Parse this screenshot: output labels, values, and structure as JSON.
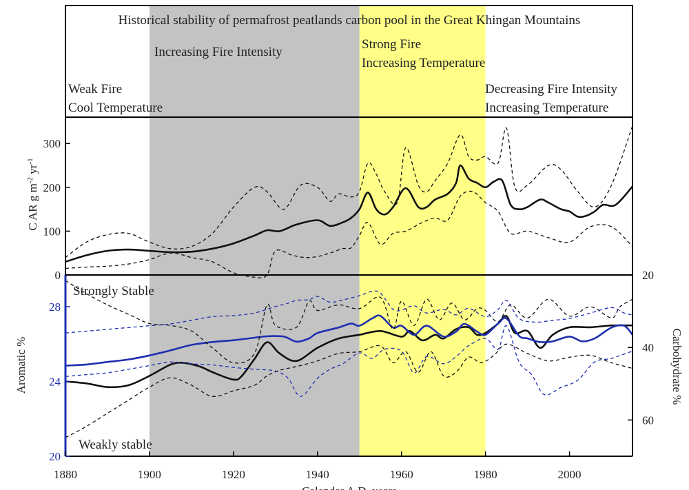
{
  "chart_data": [
    {
      "type": "annotation-panel",
      "title": "Historical stability of permafrost peatlands carbon pool in the Great Khingan Mountains",
      "periods": [
        {
          "from": 1880,
          "to": 1900,
          "color": "#ffffff",
          "lines": [
            "Weak Fire",
            "Cool Temperature"
          ]
        },
        {
          "from": 1900,
          "to": 1950,
          "color": "#c3c3c3",
          "lines": [
            "Increasing Fire Intensity"
          ]
        },
        {
          "from": 1950,
          "to": 1980,
          "color": "#ffff88",
          "lines": [
            "Strong Fire",
            "Increasing Temperature"
          ]
        },
        {
          "from": 1980,
          "to": 2015,
          "color": "#ffffff",
          "lines": [
            "Decreasing Fire Intensity",
            "Increasing Temperature"
          ]
        }
      ]
    },
    {
      "type": "line",
      "ylabel": "C AR g m-2 yr-1",
      "xlim": [
        1880,
        2015
      ],
      "ylim": [
        0,
        360
      ],
      "yticks": [
        0,
        100,
        200,
        300
      ],
      "series": [
        {
          "role": "mean",
          "color": "#111111",
          "dashed": false,
          "x": [
            1880,
            1885,
            1890,
            1895,
            1900,
            1905,
            1910,
            1915,
            1920,
            1925,
            1928,
            1931,
            1935,
            1940,
            1943,
            1946,
            1948,
            1950,
            1952,
            1954,
            1956,
            1958,
            1961,
            1964,
            1966,
            1968,
            1971,
            1973,
            1974,
            1976,
            1978,
            1980,
            1982,
            1984,
            1986,
            1988,
            1990,
            1993,
            1995,
            1998,
            2000,
            2002,
            2004,
            2006,
            2008,
            2011,
            2015
          ],
          "y": [
            30,
            45,
            55,
            58,
            55,
            52,
            53,
            60,
            72,
            90,
            102,
            100,
            115,
            125,
            112,
            120,
            130,
            150,
            188,
            150,
            138,
            155,
            198,
            155,
            155,
            172,
            185,
            210,
            250,
            220,
            210,
            200,
            213,
            215,
            160,
            150,
            155,
            172,
            165,
            150,
            145,
            133,
            135,
            145,
            160,
            160,
            202
          ]
        },
        {
          "role": "upper",
          "color": "#111111",
          "dashed": true,
          "x": [
            1880,
            1885,
            1890,
            1895,
            1900,
            1905,
            1910,
            1915,
            1920,
            1925,
            1928,
            1932,
            1936,
            1940,
            1943,
            1945,
            1948,
            1950,
            1952,
            1954,
            1956,
            1959,
            1961,
            1964,
            1966,
            1968,
            1971,
            1974,
            1976,
            1978,
            1980,
            1983,
            1985,
            1987,
            1990,
            1995,
            1998,
            2002,
            2006,
            2010,
            2015
          ],
          "y": [
            40,
            75,
            92,
            95,
            75,
            60,
            65,
            95,
            155,
            200,
            190,
            150,
            205,
            200,
            168,
            185,
            178,
            190,
            255,
            230,
            190,
            165,
            290,
            205,
            190,
            215,
            255,
            320,
            270,
            262,
            270,
            255,
            335,
            200,
            205,
            250,
            240,
            190,
            155,
            205,
            340
          ]
        },
        {
          "role": "lower",
          "color": "#111111",
          "dashed": true,
          "x": [
            1880,
            1885,
            1890,
            1895,
            1900,
            1905,
            1910,
            1915,
            1920,
            1925,
            1928,
            1930,
            1934,
            1937,
            1940,
            1943,
            1946,
            1948,
            1950,
            1952,
            1955,
            1958,
            1961,
            1965,
            1968,
            1971,
            1974,
            1977,
            1980,
            1983,
            1986,
            1990,
            1995,
            2000,
            2005,
            2010,
            2015
          ],
          "y": [
            15,
            18,
            20,
            25,
            35,
            50,
            40,
            30,
            5,
            -5,
            0,
            55,
            45,
            40,
            42,
            50,
            60,
            62,
            90,
            120,
            70,
            95,
            100,
            120,
            130,
            125,
            180,
            190,
            165,
            145,
            95,
            100,
            85,
            75,
            110,
            110,
            65
          ]
        }
      ]
    },
    {
      "type": "line",
      "ylabel": "Aromatic %",
      "ylabel_right": "Carbohydrate %",
      "xlabel": "Calendar A.D. years",
      "xlim": [
        1880,
        2015
      ],
      "xticks": [
        1880,
        1900,
        1920,
        1940,
        1960,
        1980,
        2000
      ],
      "ylim": [
        20,
        29.7
      ],
      "yticks": [
        20,
        24,
        28
      ],
      "ylim_right": [
        70,
        20
      ],
      "yticks_right": [
        20,
        40,
        60
      ],
      "annotations": [
        "Strongly Stable",
        "Weakly stable"
      ],
      "series": [
        {
          "role": "aromatic-mean",
          "axis": "left",
          "color": "#111111",
          "dashed": false,
          "x": [
            1880,
            1885,
            1890,
            1895,
            1900,
            1905,
            1908,
            1912,
            1915,
            1920,
            1922,
            1925,
            1928,
            1931,
            1935,
            1940,
            1945,
            1950,
            1955,
            1960,
            1962,
            1965,
            1968,
            1970,
            1973,
            1976,
            1978,
            1980,
            1983,
            1985,
            1987,
            1990,
            1993,
            1996,
            2000,
            2005,
            2010,
            2015
          ],
          "y": [
            24.0,
            23.9,
            23.7,
            23.8,
            24.3,
            24.9,
            25.0,
            24.8,
            24.5,
            24.1,
            24.3,
            25.2,
            26.1,
            25.5,
            25.1,
            25.8,
            26.3,
            26.5,
            26.7,
            26.4,
            26.7,
            26.2,
            26.5,
            26.3,
            26.8,
            26.9,
            26.5,
            26.6,
            27.1,
            27.5,
            26.6,
            26.7,
            25.8,
            26.5,
            26.9,
            26.9,
            27.0,
            27.0
          ]
        },
        {
          "role": "carbohydrate-mean",
          "axis": "right",
          "color": "#1d2fb0",
          "dashed": false,
          "x": [
            1880,
            1885,
            1890,
            1895,
            1900,
            1905,
            1910,
            1915,
            1920,
            1925,
            1928,
            1932,
            1935,
            1938,
            1940,
            1945,
            1948,
            1950,
            1953,
            1955,
            1958,
            1960,
            1963,
            1966,
            1970,
            1973,
            1975,
            1978,
            1980,
            1983,
            1985,
            1988,
            1990,
            1993,
            1996,
            2000,
            2003,
            2006,
            2010,
            2013,
            2015
          ],
          "y": [
            45.0,
            44.7,
            44.0,
            43.3,
            42.2,
            40.8,
            39.3,
            38.5,
            38.0,
            37.3,
            36.9,
            37.0,
            38.4,
            37.5,
            36.0,
            34.5,
            33.4,
            34.0,
            32.0,
            31.3,
            34.5,
            34.0,
            36.5,
            34.0,
            37.0,
            35.6,
            33.5,
            35.6,
            36.5,
            33.4,
            32.0,
            36.8,
            37.5,
            38.5,
            38.3,
            37.0,
            38.3,
            37.5,
            34.5,
            34.0,
            36.5
          ]
        },
        {
          "role": "aromatic-upper",
          "axis": "left",
          "color": "#111111",
          "dashed": true,
          "x": [
            1880,
            1885,
            1890,
            1895,
            1900,
            1905,
            1910,
            1915,
            1920,
            1925,
            1928,
            1930,
            1935,
            1938,
            1940,
            1945,
            1950,
            1955,
            1958,
            1960,
            1963,
            1966,
            1969,
            1972,
            1975,
            1978,
            1980,
            1983,
            1986,
            1990,
            1995,
            2000,
            2005,
            2010,
            2012,
            2015
          ],
          "y": [
            29.4,
            28.7,
            28.1,
            27.6,
            27.1,
            27.0,
            26.7,
            25.8,
            25.0,
            25.5,
            28.1,
            27.0,
            26.9,
            28.3,
            27.8,
            28.1,
            27.9,
            28.5,
            26.8,
            28.3,
            27.0,
            28.4,
            27.3,
            28.2,
            27.3,
            27.9,
            27.8,
            27.2,
            28.1,
            27.4,
            28.4,
            27.5,
            28.0,
            27.4,
            28.0,
            28.4
          ]
        },
        {
          "role": "aromatic-lower",
          "axis": "left",
          "color": "#111111",
          "dashed": true,
          "x": [
            1880,
            1885,
            1890,
            1895,
            1900,
            1905,
            1910,
            1915,
            1920,
            1925,
            1928,
            1931,
            1935,
            1940,
            1945,
            1950,
            1955,
            1958,
            1961,
            1964,
            1967,
            1970,
            1973,
            1976,
            1979,
            1982,
            1985,
            1990,
            1995,
            2000,
            2005,
            2010,
            2015
          ],
          "y": [
            21.0,
            21.6,
            22.3,
            23.0,
            23.7,
            24.2,
            23.8,
            23.2,
            23.5,
            23.8,
            24.3,
            24.6,
            24.8,
            25.1,
            25.5,
            25.6,
            25.9,
            25.0,
            25.6,
            24.5,
            25.6,
            24.3,
            24.5,
            25.3,
            25.0,
            25.4,
            26.0,
            25.5,
            25.1,
            25.3,
            25.4,
            25.0,
            24.7
          ]
        },
        {
          "role": "carbohydrate-upper",
          "axis": "right",
          "color": "#1d2fb0",
          "dashed": true,
          "x": [
            1880,
            1885,
            1890,
            1895,
            1900,
            1905,
            1910,
            1915,
            1920,
            1925,
            1930,
            1933,
            1935,
            1938,
            1940,
            1943,
            1946,
            1950,
            1953,
            1955,
            1958,
            1960,
            1963,
            1966,
            1970,
            1973,
            1976,
            1980,
            1983,
            1985,
            1988,
            1992,
            1996,
            2000,
            2005,
            2010,
            2013,
            2015
          ],
          "y": [
            36.0,
            35.5,
            35.0,
            34.5,
            34.0,
            33.5,
            32.5,
            31.5,
            31.2,
            30.5,
            28.7,
            27.8,
            27.0,
            26.8,
            25.9,
            27.5,
            26.9,
            25.7,
            24.5,
            25.0,
            29.5,
            29.7,
            28.5,
            30.5,
            29.5,
            31.0,
            29.2,
            31.5,
            29.5,
            27.0,
            32.0,
            33.0,
            32.5,
            32.0,
            30.5,
            29.0,
            30.5,
            31.0
          ]
        },
        {
          "role": "carbohydrate-lower",
          "axis": "right",
          "color": "#1d2fb0",
          "dashed": true,
          "x": [
            1880,
            1885,
            1890,
            1895,
            1900,
            1905,
            1910,
            1915,
            1920,
            1925,
            1930,
            1933,
            1936,
            1940,
            1943,
            1946,
            1950,
            1953,
            1956,
            1960,
            1963,
            1966,
            1970,
            1973,
            1976,
            1980,
            1983,
            1985,
            1988,
            1991,
            1994,
            1998,
            2002,
            2006,
            2010,
            2015
          ],
          "y": [
            48.0,
            47.5,
            47.0,
            46.0,
            45.0,
            44.0,
            44.5,
            44.8,
            45.5,
            46.0,
            46.5,
            48.5,
            53.5,
            48.5,
            46.0,
            44.5,
            41.5,
            43.0,
            40.5,
            41.0,
            47.0,
            42.5,
            44.5,
            42.5,
            39.5,
            37.5,
            40.5,
            34.0,
            44.0,
            47.5,
            53.0,
            51.0,
            49.0,
            44.0,
            43.0,
            41.0
          ]
        }
      ]
    }
  ]
}
